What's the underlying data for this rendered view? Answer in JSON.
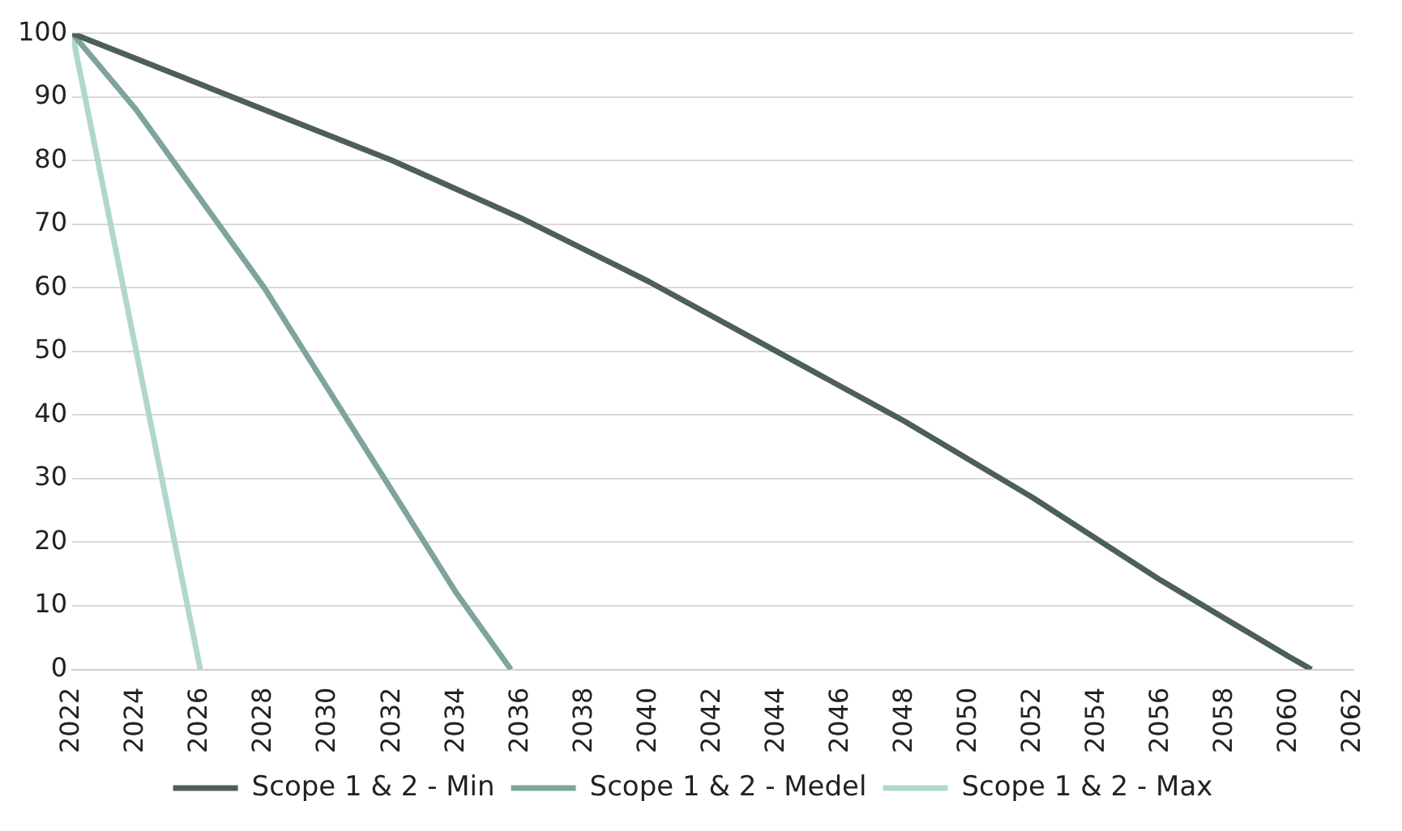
{
  "chart_data": {
    "type": "line",
    "xlim": [
      2022,
      2062
    ],
    "xticks": [
      2022,
      2024,
      2026,
      2028,
      2030,
      2032,
      2034,
      2036,
      2038,
      2040,
      2042,
      2044,
      2046,
      2048,
      2050,
      2052,
      2054,
      2056,
      2058,
      2060,
      2062
    ],
    "ylim": [
      0,
      100
    ],
    "yticks": [
      0,
      10,
      20,
      30,
      40,
      50,
      60,
      70,
      80,
      90,
      100
    ],
    "grid": "y",
    "legend": "bottom",
    "marker": "none",
    "line_style": "solid",
    "series": [
      {
        "name": "Scope 1 & 2 - Min",
        "color": "#4d5f5a",
        "x": [
          2022,
          2024,
          2028,
          2032,
          2036,
          2040,
          2044,
          2048,
          2052,
          2056,
          2060,
          2060.7
        ],
        "values": [
          100,
          96,
          88,
          80,
          71,
          61,
          50,
          39,
          27,
          14,
          2,
          0
        ]
      },
      {
        "name": "Scope 1 & 2 - Medel",
        "color": "#7fa39d",
        "x": [
          2022,
          2024,
          2026,
          2028,
          2030,
          2032,
          2034,
          2035.7
        ],
        "values": [
          100,
          88,
          74,
          60,
          44,
          28,
          12,
          0
        ]
      },
      {
        "name": "Scope 1 & 2 - Max",
        "color": "#b1d6d0",
        "x": [
          2022,
          2026
        ],
        "values": [
          100,
          0
        ]
      }
    ]
  }
}
